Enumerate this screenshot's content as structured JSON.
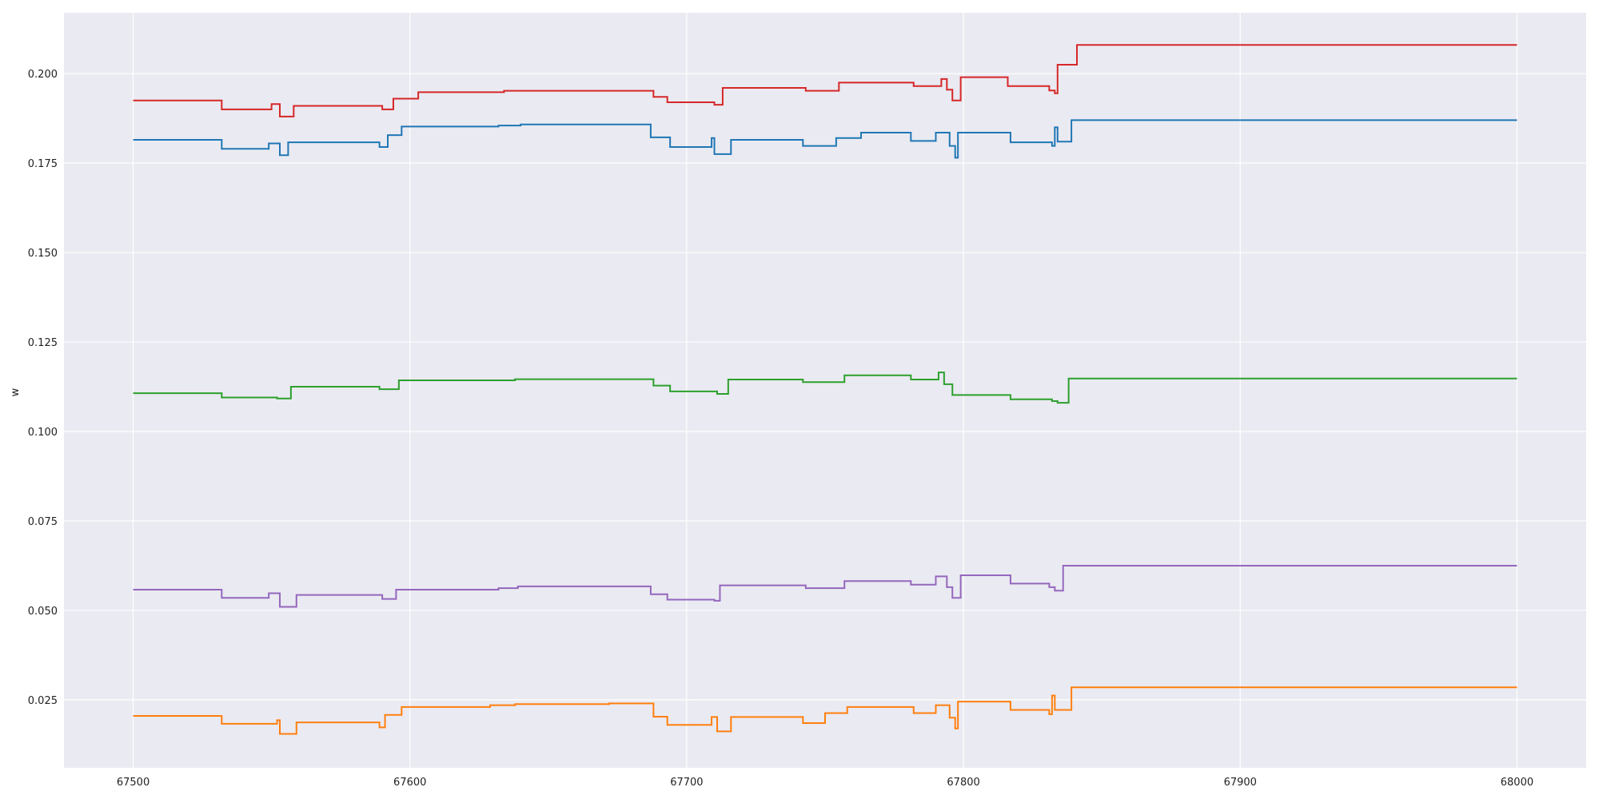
{
  "chart_data": {
    "type": "line",
    "title": "",
    "xlabel": "",
    "ylabel": "w",
    "xlim": [
      67475,
      68025
    ],
    "ylim": [
      0.006,
      0.217
    ],
    "grid": true,
    "x_ticks": [
      67500,
      67600,
      67700,
      67800,
      67900,
      68000
    ],
    "y_ticks": [
      0.025,
      0.05,
      0.075,
      0.1,
      0.125,
      0.15,
      0.175,
      0.2
    ],
    "x_tick_labels": [
      "67500",
      "67600",
      "67700",
      "67800",
      "67900",
      "68000"
    ],
    "y_tick_labels": [
      "0.025",
      "0.050",
      "0.075",
      "0.100",
      "0.125",
      "0.150",
      "0.175",
      "0.200"
    ],
    "colors": {
      "background": "#eaeaf2",
      "grid": "#ffffff"
    },
    "step_style": "post",
    "series": [
      {
        "color": "#d62728",
        "points": [
          [
            67500,
            0.1925
          ],
          [
            67532,
            0.19
          ],
          [
            67550,
            0.1915
          ],
          [
            67553,
            0.188
          ],
          [
            67558,
            0.191
          ],
          [
            67590,
            0.19
          ],
          [
            67594,
            0.193
          ],
          [
            67603,
            0.1948
          ],
          [
            67634,
            0.1952
          ],
          [
            67688,
            0.1935
          ],
          [
            67693,
            0.192
          ],
          [
            67710,
            0.1913
          ],
          [
            67713,
            0.196
          ],
          [
            67743,
            0.1952
          ],
          [
            67755,
            0.1975
          ],
          [
            67782,
            0.1965
          ],
          [
            67792,
            0.1985
          ],
          [
            67794,
            0.1955
          ],
          [
            67796,
            0.1925
          ],
          [
            67799,
            0.199
          ],
          [
            67816,
            0.1965
          ],
          [
            67831,
            0.1953
          ],
          [
            67833,
            0.1945
          ],
          [
            67834,
            0.2025
          ],
          [
            67841,
            0.208
          ],
          [
            68000,
            0.208
          ]
        ]
      },
      {
        "color": "#1f77b4",
        "points": [
          [
            67500,
            0.1815
          ],
          [
            67532,
            0.179
          ],
          [
            67549,
            0.1805
          ],
          [
            67553,
            0.1772
          ],
          [
            67556,
            0.1808
          ],
          [
            67589,
            0.1795
          ],
          [
            67592,
            0.1828
          ],
          [
            67597,
            0.1852
          ],
          [
            67632,
            0.1855
          ],
          [
            67640,
            0.1858
          ],
          [
            67687,
            0.1822
          ],
          [
            67694,
            0.1795
          ],
          [
            67709,
            0.182
          ],
          [
            67710,
            0.1775
          ],
          [
            67716,
            0.1815
          ],
          [
            67742,
            0.1798
          ],
          [
            67754,
            0.182
          ],
          [
            67763,
            0.1835
          ],
          [
            67781,
            0.1812
          ],
          [
            67790,
            0.1835
          ],
          [
            67795,
            0.1798
          ],
          [
            67797,
            0.1765
          ],
          [
            67798,
            0.1835
          ],
          [
            67817,
            0.1808
          ],
          [
            67832,
            0.1798
          ],
          [
            67833,
            0.185
          ],
          [
            67834,
            0.181
          ],
          [
            67839,
            0.187
          ],
          [
            68000,
            0.187
          ]
        ]
      },
      {
        "color": "#2ca02c",
        "points": [
          [
            67500,
            0.1107
          ],
          [
            67532,
            0.1095
          ],
          [
            67552,
            0.1092
          ],
          [
            67557,
            0.1125
          ],
          [
            67589,
            0.1118
          ],
          [
            67596,
            0.1143
          ],
          [
            67638,
            0.1146
          ],
          [
            67688,
            0.1128
          ],
          [
            67694,
            0.1112
          ],
          [
            67711,
            0.1105
          ],
          [
            67715,
            0.1145
          ],
          [
            67742,
            0.1138
          ],
          [
            67757,
            0.1157
          ],
          [
            67781,
            0.1145
          ],
          [
            67791,
            0.1165
          ],
          [
            67793,
            0.1132
          ],
          [
            67796,
            0.1102
          ],
          [
            67817,
            0.109
          ],
          [
            67832,
            0.1085
          ],
          [
            67834,
            0.108
          ],
          [
            67838,
            0.1148
          ],
          [
            68000,
            0.1148
          ]
        ]
      },
      {
        "color": "#9467bd",
        "points": [
          [
            67500,
            0.0558
          ],
          [
            67532,
            0.0535
          ],
          [
            67549,
            0.0548
          ],
          [
            67553,
            0.051
          ],
          [
            67559,
            0.0543
          ],
          [
            67590,
            0.0532
          ],
          [
            67595,
            0.0558
          ],
          [
            67632,
            0.0562
          ],
          [
            67639,
            0.0567
          ],
          [
            67687,
            0.0545
          ],
          [
            67693,
            0.053
          ],
          [
            67710,
            0.0527
          ],
          [
            67712,
            0.057
          ],
          [
            67743,
            0.0562
          ],
          [
            67757,
            0.0582
          ],
          [
            67781,
            0.0572
          ],
          [
            67790,
            0.0595
          ],
          [
            67794,
            0.0565
          ],
          [
            67796,
            0.0535
          ],
          [
            67799,
            0.0598
          ],
          [
            67817,
            0.0575
          ],
          [
            67831,
            0.0565
          ],
          [
            67833,
            0.0555
          ],
          [
            67836,
            0.0625
          ],
          [
            68000,
            0.0625
          ]
        ]
      },
      {
        "color": "#ff7f0e",
        "points": [
          [
            67500,
            0.0205
          ],
          [
            67532,
            0.0183
          ],
          [
            67552,
            0.0193
          ],
          [
            67553,
            0.0155
          ],
          [
            67559,
            0.0187
          ],
          [
            67589,
            0.0173
          ],
          [
            67591,
            0.0208
          ],
          [
            67597,
            0.023
          ],
          [
            67629,
            0.0235
          ],
          [
            67638,
            0.0238
          ],
          [
            67672,
            0.024
          ],
          [
            67688,
            0.0203
          ],
          [
            67693,
            0.018
          ],
          [
            67709,
            0.0202
          ],
          [
            67711,
            0.0162
          ],
          [
            67716,
            0.0202
          ],
          [
            67742,
            0.0185
          ],
          [
            67750,
            0.0213
          ],
          [
            67758,
            0.023
          ],
          [
            67782,
            0.0213
          ],
          [
            67790,
            0.0235
          ],
          [
            67795,
            0.02
          ],
          [
            67797,
            0.017
          ],
          [
            67798,
            0.0245
          ],
          [
            67817,
            0.0222
          ],
          [
            67831,
            0.021
          ],
          [
            67832,
            0.0262
          ],
          [
            67833,
            0.0222
          ],
          [
            67839,
            0.0285
          ],
          [
            68000,
            0.0285
          ]
        ]
      }
    ]
  }
}
